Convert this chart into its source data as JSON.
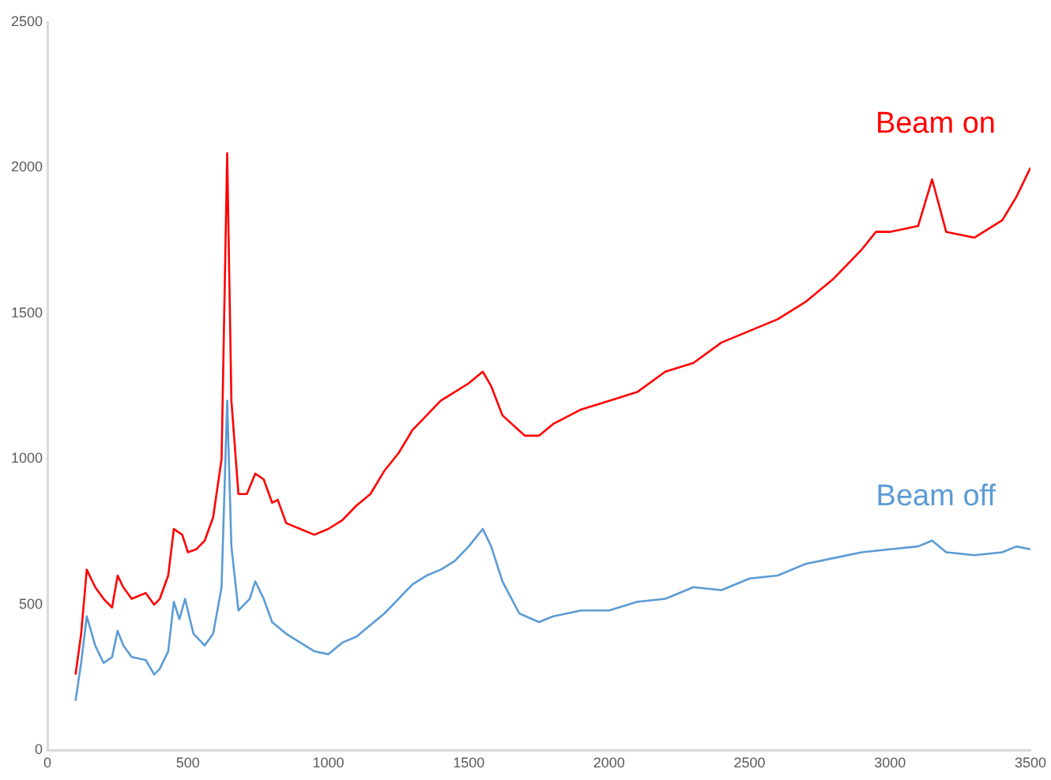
{
  "chart_data": {
    "type": "line",
    "xlim": [
      0,
      3500
    ],
    "xticks": [
      0,
      500,
      1000,
      1500,
      2000,
      2500,
      3000,
      3500
    ],
    "ylim": [
      0,
      2500
    ],
    "yticks": [
      0,
      500,
      1000,
      1500,
      2000,
      2500
    ],
    "grid": false,
    "legend": false,
    "marker": "none",
    "line_style": "solid",
    "series": [
      {
        "name": "Beam on",
        "color": "#ff0000",
        "x": [
          100,
          120,
          140,
          170,
          200,
          230,
          250,
          270,
          300,
          350,
          380,
          400,
          430,
          450,
          480,
          500,
          530,
          560,
          590,
          620,
          640,
          655,
          680,
          710,
          740,
          770,
          800,
          820,
          850,
          900,
          950,
          1000,
          1050,
          1100,
          1150,
          1200,
          1250,
          1300,
          1350,
          1400,
          1450,
          1500,
          1550,
          1580,
          1620,
          1700,
          1750,
          1800,
          1900,
          2000,
          2100,
          2200,
          2300,
          2400,
          2500,
          2600,
          2700,
          2800,
          2900,
          2950,
          3000,
          3100,
          3150,
          3200,
          3300,
          3400,
          3450,
          3500
        ],
        "values": [
          260,
          400,
          620,
          560,
          520,
          490,
          600,
          560,
          520,
          540,
          500,
          520,
          600,
          760,
          740,
          680,
          690,
          720,
          800,
          1000,
          2050,
          1200,
          880,
          880,
          950,
          930,
          850,
          860,
          780,
          760,
          740,
          760,
          790,
          840,
          880,
          960,
          1020,
          1100,
          1150,
          1200,
          1230,
          1260,
          1300,
          1250,
          1150,
          1080,
          1080,
          1120,
          1170,
          1200,
          1230,
          1300,
          1330,
          1400,
          1440,
          1480,
          1540,
          1620,
          1720,
          1780,
          1780,
          1800,
          1960,
          1780,
          1760,
          1820,
          1900,
          2000
        ]
      },
      {
        "name": "Beam off",
        "color": "#5b9bd5",
        "x": [
          100,
          120,
          140,
          170,
          200,
          230,
          250,
          270,
          300,
          350,
          380,
          400,
          430,
          450,
          470,
          490,
          520,
          560,
          590,
          620,
          640,
          655,
          680,
          720,
          740,
          770,
          800,
          850,
          900,
          950,
          1000,
          1050,
          1100,
          1150,
          1200,
          1250,
          1300,
          1350,
          1400,
          1450,
          1500,
          1550,
          1580,
          1620,
          1680,
          1750,
          1800,
          1900,
          2000,
          2100,
          2200,
          2300,
          2400,
          2500,
          2600,
          2700,
          2800,
          2900,
          3000,
          3100,
          3150,
          3200,
          3300,
          3400,
          3450,
          3500
        ],
        "values": [
          170,
          300,
          460,
          360,
          300,
          320,
          410,
          360,
          320,
          310,
          260,
          280,
          340,
          510,
          450,
          520,
          400,
          360,
          400,
          560,
          1200,
          700,
          480,
          520,
          580,
          520,
          440,
          400,
          370,
          340,
          330,
          370,
          390,
          430,
          470,
          520,
          570,
          600,
          620,
          650,
          700,
          760,
          700,
          580,
          470,
          440,
          460,
          480,
          480,
          510,
          520,
          560,
          550,
          590,
          600,
          640,
          660,
          680,
          690,
          700,
          720,
          680,
          670,
          680,
          700,
          690
        ]
      }
    ]
  }
}
